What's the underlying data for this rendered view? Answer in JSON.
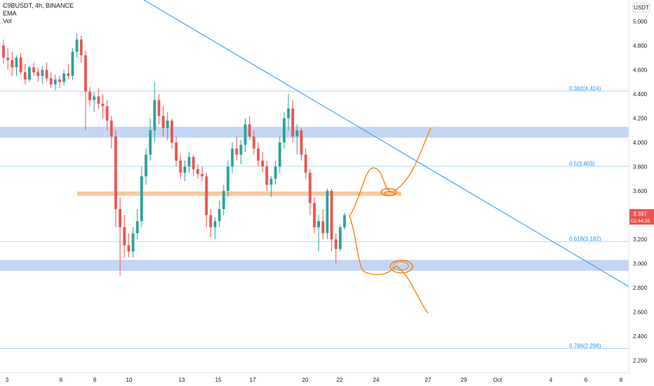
{
  "legend": {
    "symbol": "C9BUSDT, 4h, BINANCE",
    "ema": "EMA",
    "vol": "Vol"
  },
  "currency_badge": "USDT",
  "price_badge": {
    "price": "3.397",
    "countdown": "01:44:26"
  },
  "colors": {
    "up": "#26a69a",
    "down": "#ef5350",
    "trend": "#2196f3",
    "zone": "#c4d6f5",
    "level": "#f8c99b",
    "fib": "#90caf9",
    "fibText": "#2196f3",
    "drawing": "#f57c00",
    "badge": "#ef5350"
  },
  "chart_data": {
    "type": "candlestick",
    "y_ticks": [
      "5.000",
      "4.800",
      "4.600",
      "4.400",
      "4.200",
      "4.000",
      "3.800",
      "3.600",
      "3.400",
      "3.200",
      "3.000",
      "2.800",
      "2.600",
      "2.400",
      "2.200"
    ],
    "x_ticks": [
      "3",
      "6",
      "8",
      "10",
      "13",
      "15",
      "17",
      "20",
      "22",
      "24",
      "27",
      "29",
      "Oct",
      "4",
      "6",
      "8"
    ],
    "ylim": [
      2.15,
      5.08
    ],
    "fib_levels": [
      {
        "label": "0.382(4.424)",
        "value": 4.424
      },
      {
        "label": "0.5(3.803)",
        "value": 3.803
      },
      {
        "label": "0.618(3.182)",
        "value": 3.182
      },
      {
        "label": "0.786(2.298)",
        "value": 2.298
      }
    ],
    "zones": [
      {
        "low": 4.04,
        "high": 4.13
      },
      {
        "low": 2.94,
        "high": 3.03
      }
    ],
    "horizontal_level": {
      "low": 3.56,
      "high": 3.595
    },
    "trendline": {
      "from": [
        "3",
        5.27
      ],
      "to": [
        "8 (Oct)",
        2.81
      ]
    },
    "projections": [
      {
        "direction": "up",
        "points": [
          3.39,
          3.79,
          3.59,
          4.12
        ]
      },
      {
        "direction": "down",
        "points": [
          3.39,
          2.93,
          2.98,
          2.59
        ]
      }
    ],
    "ohlc": [
      [
        4.8,
        4.85,
        4.65,
        4.7
      ],
      [
        4.7,
        4.78,
        4.6,
        4.68
      ],
      [
        4.68,
        4.75,
        4.55,
        4.62
      ],
      [
        4.62,
        4.72,
        4.55,
        4.7
      ],
      [
        4.7,
        4.74,
        4.56,
        4.58
      ],
      [
        4.58,
        4.65,
        4.48,
        4.52
      ],
      [
        4.52,
        4.64,
        4.5,
        4.62
      ],
      [
        4.62,
        4.66,
        4.55,
        4.58
      ],
      [
        4.58,
        4.62,
        4.5,
        4.55
      ],
      [
        4.55,
        4.63,
        4.48,
        4.6
      ],
      [
        4.6,
        4.66,
        4.5,
        4.53
      ],
      [
        4.53,
        4.58,
        4.45,
        4.48
      ],
      [
        4.48,
        4.56,
        4.43,
        4.52
      ],
      [
        4.52,
        4.55,
        4.45,
        4.5
      ],
      [
        4.5,
        4.6,
        4.47,
        4.57
      ],
      [
        4.57,
        4.65,
        4.52,
        4.55
      ],
      [
        4.55,
        4.78,
        4.52,
        4.75
      ],
      [
        4.75,
        4.9,
        4.7,
        4.85
      ],
      [
        4.85,
        4.88,
        4.66,
        4.72
      ],
      [
        4.72,
        4.76,
        4.1,
        4.42
      ],
      [
        4.42,
        4.46,
        4.3,
        4.35
      ],
      [
        4.35,
        4.42,
        4.25,
        4.38
      ],
      [
        4.38,
        4.45,
        4.28,
        4.32
      ],
      [
        4.32,
        4.4,
        4.2,
        4.3
      ],
      [
        4.3,
        4.35,
        4.1,
        4.18
      ],
      [
        4.18,
        4.22,
        3.95,
        4.05
      ],
      [
        4.05,
        4.1,
        3.3,
        3.45
      ],
      [
        3.45,
        3.55,
        2.9,
        3.3
      ],
      [
        3.3,
        3.4,
        3.05,
        3.15
      ],
      [
        3.15,
        3.25,
        3.05,
        3.1
      ],
      [
        3.1,
        3.3,
        3.05,
        3.25
      ],
      [
        3.25,
        3.45,
        3.2,
        3.35
      ],
      [
        3.35,
        3.8,
        3.3,
        3.72
      ],
      [
        3.72,
        3.95,
        3.65,
        3.9
      ],
      [
        3.9,
        4.2,
        3.85,
        4.1
      ],
      [
        4.1,
        4.5,
        4.0,
        4.35
      ],
      [
        4.35,
        4.4,
        4.15,
        4.22
      ],
      [
        4.22,
        4.3,
        4.05,
        4.12
      ],
      [
        4.12,
        4.25,
        4.02,
        4.18
      ],
      [
        4.18,
        4.2,
        3.95,
        4.0
      ],
      [
        4.0,
        4.05,
        3.8,
        3.85
      ],
      [
        3.85,
        3.9,
        3.7,
        3.75
      ],
      [
        3.75,
        3.85,
        3.68,
        3.8
      ],
      [
        3.8,
        3.92,
        3.75,
        3.88
      ],
      [
        3.88,
        3.9,
        3.72,
        3.78
      ],
      [
        3.78,
        3.82,
        3.7,
        3.74
      ],
      [
        3.74,
        3.8,
        3.68,
        3.72
      ],
      [
        3.72,
        3.75,
        3.3,
        3.4
      ],
      [
        3.4,
        3.45,
        3.22,
        3.3
      ],
      [
        3.3,
        3.38,
        3.2,
        3.35
      ],
      [
        3.35,
        3.52,
        3.3,
        3.45
      ],
      [
        3.45,
        3.65,
        3.4,
        3.6
      ],
      [
        3.6,
        3.85,
        3.55,
        3.8
      ],
      [
        3.8,
        4.0,
        3.75,
        3.95
      ],
      [
        3.95,
        4.05,
        3.85,
        3.9
      ],
      [
        3.9,
        4.02,
        3.82,
        3.98
      ],
      [
        3.98,
        4.2,
        3.92,
        4.15
      ],
      [
        4.15,
        4.22,
        4.02,
        4.05
      ],
      [
        4.05,
        4.1,
        3.9,
        3.95
      ],
      [
        3.95,
        4.0,
        3.8,
        3.85
      ],
      [
        3.85,
        3.92,
        3.75,
        3.8
      ],
      [
        3.8,
        3.85,
        3.6,
        3.65
      ],
      [
        3.65,
        3.72,
        3.55,
        3.7
      ],
      [
        3.7,
        3.85,
        3.65,
        3.8
      ],
      [
        3.8,
        4.05,
        3.75,
        4.0
      ],
      [
        4.0,
        4.25,
        3.95,
        4.2
      ],
      [
        4.2,
        4.4,
        4.1,
        4.28
      ],
      [
        4.28,
        4.35,
        4.0,
        4.05
      ],
      [
        4.05,
        4.15,
        3.9,
        4.1
      ],
      [
        4.1,
        4.12,
        3.85,
        3.9
      ],
      [
        3.9,
        3.95,
        3.7,
        3.75
      ],
      [
        3.75,
        3.78,
        3.4,
        3.5
      ],
      [
        3.5,
        3.55,
        3.25,
        3.3
      ],
      [
        3.3,
        3.4,
        3.1,
        3.35
      ],
      [
        3.35,
        3.45,
        3.2,
        3.25
      ],
      [
        3.25,
        3.62,
        3.2,
        3.6
      ],
      [
        3.6,
        3.62,
        3.1,
        3.2
      ],
      [
        3.2,
        3.25,
        3.0,
        3.12
      ],
      [
        3.12,
        3.32,
        3.1,
        3.3
      ],
      [
        3.3,
        3.42,
        3.28,
        3.4
      ]
    ]
  }
}
